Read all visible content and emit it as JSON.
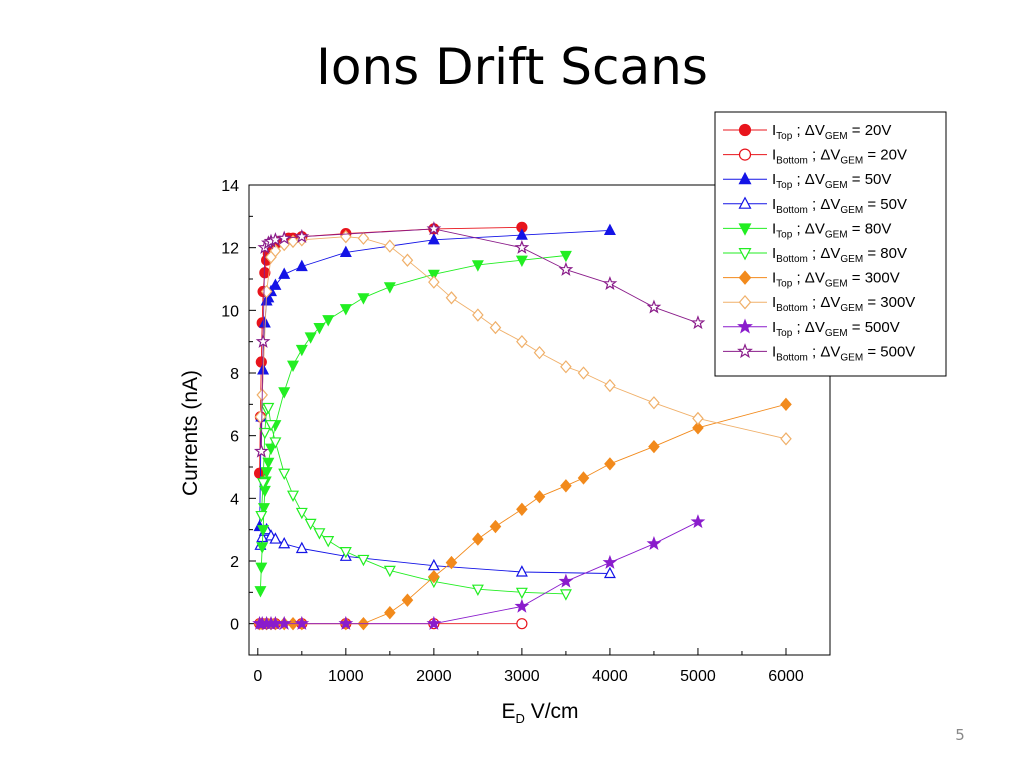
{
  "slide": {
    "title": "Ions Drift Scans",
    "number": "5"
  },
  "chart_data": {
    "type": "scatter",
    "xlabel": {
      "main": "E",
      "sub": "D",
      "rest": " V/cm"
    },
    "ylabel": "Currents (nA)",
    "xlim": [
      -100,
      6500
    ],
    "ylim": [
      -1,
      14
    ],
    "xticks": [
      0,
      1000,
      2000,
      3000,
      4000,
      5000,
      6000
    ],
    "yticks": [
      0,
      2,
      4,
      6,
      8,
      10,
      12,
      14
    ],
    "legend_position": "top-right",
    "series": [
      {
        "name": "I_Top ; ΔV_GEM = 20V",
        "legend": {
          "i": "I",
          "isub": "Top",
          "dv": " ; ΔV",
          "dvsub": "GEM",
          "val": " = 20V"
        },
        "color": "#e8141c",
        "marker": "circle",
        "filled": true,
        "points": [
          [
            20,
            4.8
          ],
          [
            30,
            6.6
          ],
          [
            40,
            8.35
          ],
          [
            50,
            9.6
          ],
          [
            60,
            10.6
          ],
          [
            80,
            11.2
          ],
          [
            100,
            11.6
          ],
          [
            120,
            11.8
          ],
          [
            150,
            12.0
          ],
          [
            200,
            12.1
          ],
          [
            250,
            12.2
          ],
          [
            300,
            12.2
          ],
          [
            350,
            12.3
          ],
          [
            400,
            12.3
          ],
          [
            500,
            12.35
          ],
          [
            1000,
            12.45
          ],
          [
            2000,
            12.6
          ],
          [
            3000,
            12.65
          ]
        ]
      },
      {
        "name": "I_Bottom ; ΔV_GEM = 20V",
        "legend": {
          "i": "I",
          "isub": "Bottom",
          "dv": " ; ΔV",
          "dvsub": "GEM",
          "val": " = 20V"
        },
        "color": "#e8141c",
        "marker": "circle",
        "filled": false,
        "points": [
          [
            20,
            0
          ],
          [
            50,
            0
          ],
          [
            100,
            0
          ],
          [
            200,
            0
          ],
          [
            500,
            0
          ],
          [
            1000,
            0
          ],
          [
            2000,
            0
          ],
          [
            3000,
            0
          ]
        ]
      },
      {
        "name": "I_Top ; ΔV_GEM = 50V",
        "legend": {
          "i": "I",
          "isub": "Top",
          "dv": " ; ΔV",
          "dvsub": "GEM",
          "val": " = 50V"
        },
        "color": "#1414e6",
        "marker": "triangle",
        "filled": true,
        "points": [
          [
            20,
            3.1
          ],
          [
            40,
            6.6
          ],
          [
            60,
            8.1
          ],
          [
            80,
            9.6
          ],
          [
            100,
            10.3
          ],
          [
            120,
            10.4
          ],
          [
            150,
            10.6
          ],
          [
            200,
            10.8
          ],
          [
            300,
            11.15
          ],
          [
            500,
            11.4
          ],
          [
            1000,
            11.85
          ],
          [
            2000,
            12.25
          ],
          [
            3000,
            12.4
          ],
          [
            4000,
            12.55
          ]
        ]
      },
      {
        "name": "I_Bottom ; ΔV_GEM = 50V",
        "legend": {
          "i": "I",
          "isub": "Bottom",
          "dv": " ; ΔV",
          "dvsub": "GEM",
          "val": " = 50V"
        },
        "color": "#1414e6",
        "marker": "triangle",
        "filled": false,
        "points": [
          [
            30,
            2.5
          ],
          [
            50,
            2.75
          ],
          [
            80,
            2.95
          ],
          [
            100,
            3.0
          ],
          [
            150,
            2.8
          ],
          [
            200,
            2.7
          ],
          [
            300,
            2.55
          ],
          [
            500,
            2.4
          ],
          [
            1000,
            2.15
          ],
          [
            2000,
            1.85
          ],
          [
            3000,
            1.65
          ],
          [
            4000,
            1.6
          ]
        ]
      },
      {
        "name": "I_Top ; ΔV_GEM = 80V",
        "legend": {
          "i": "I",
          "isub": "Top",
          "dv": " ; ΔV",
          "dvsub": "GEM",
          "val": " = 80V"
        },
        "color": "#22ee22",
        "marker": "triangle-down",
        "filled": true,
        "points": [
          [
            30,
            1.05
          ],
          [
            40,
            1.8
          ],
          [
            50,
            2.45
          ],
          [
            60,
            3.0
          ],
          [
            70,
            3.7
          ],
          [
            80,
            4.25
          ],
          [
            90,
            4.55
          ],
          [
            100,
            4.85
          ],
          [
            120,
            5.15
          ],
          [
            150,
            5.6
          ],
          [
            200,
            6.35
          ],
          [
            300,
            7.4
          ],
          [
            400,
            8.25
          ],
          [
            500,
            8.75
          ],
          [
            600,
            9.15
          ],
          [
            700,
            9.45
          ],
          [
            800,
            9.7
          ],
          [
            1000,
            10.05
          ],
          [
            1200,
            10.4
          ],
          [
            1500,
            10.75
          ],
          [
            2000,
            11.15
          ],
          [
            2500,
            11.45
          ],
          [
            3000,
            11.6
          ],
          [
            3500,
            11.75
          ]
        ]
      },
      {
        "name": "I_Bottom ; ΔV_GEM = 80V",
        "legend": {
          "i": "I",
          "isub": "Bottom",
          "dv": " ; ΔV",
          "dvsub": "GEM",
          "val": " = 80V"
        },
        "color": "#22ee22",
        "marker": "triangle-down",
        "filled": false,
        "points": [
          [
            40,
            3.45
          ],
          [
            60,
            4.5
          ],
          [
            80,
            6.1
          ],
          [
            100,
            6.85
          ],
          [
            120,
            6.9
          ],
          [
            150,
            6.35
          ],
          [
            200,
            5.8
          ],
          [
            300,
            4.8
          ],
          [
            400,
            4.1
          ],
          [
            500,
            3.55
          ],
          [
            600,
            3.2
          ],
          [
            700,
            2.9
          ],
          [
            800,
            2.65
          ],
          [
            1000,
            2.3
          ],
          [
            1200,
            2.05
          ],
          [
            1500,
            1.7
          ],
          [
            2000,
            1.35
          ],
          [
            2500,
            1.1
          ],
          [
            3000,
            1.0
          ],
          [
            3500,
            0.95
          ]
        ]
      },
      {
        "name": "I_Top ; ΔV_GEM = 300V",
        "legend": {
          "i": "I",
          "isub": "Top",
          "dv": " ; ΔV",
          "dvsub": "GEM",
          "val": " = 300V"
        },
        "color": "#f28a1c",
        "marker": "diamond",
        "filled": true,
        "points": [
          [
            20,
            0
          ],
          [
            50,
            0
          ],
          [
            100,
            0
          ],
          [
            150,
            0
          ],
          [
            200,
            0
          ],
          [
            300,
            0
          ],
          [
            400,
            0
          ],
          [
            500,
            0
          ],
          [
            1000,
            0
          ],
          [
            1200,
            0
          ],
          [
            1500,
            0.35
          ],
          [
            1700,
            0.75
          ],
          [
            2000,
            1.5
          ],
          [
            2200,
            1.95
          ],
          [
            2500,
            2.7
          ],
          [
            2700,
            3.1
          ],
          [
            3000,
            3.65
          ],
          [
            3200,
            4.05
          ],
          [
            3500,
            4.4
          ],
          [
            3700,
            4.65
          ],
          [
            4000,
            5.1
          ],
          [
            4500,
            5.65
          ],
          [
            5000,
            6.25
          ],
          [
            6000,
            7.0
          ]
        ]
      },
      {
        "name": "I_Bottom ; ΔV_GEM = 300V",
        "legend": {
          "i": "I",
          "isub": "Bottom",
          "dv": " ; ΔV",
          "dvsub": "GEM",
          "val": " = 300V"
        },
        "color": "#f0b06a",
        "marker": "diamond",
        "filled": false,
        "points": [
          [
            30,
            6.6
          ],
          [
            50,
            7.3
          ],
          [
            100,
            10.6
          ],
          [
            150,
            11.7
          ],
          [
            200,
            11.9
          ],
          [
            300,
            12.1
          ],
          [
            400,
            12.2
          ],
          [
            500,
            12.25
          ],
          [
            1000,
            12.35
          ],
          [
            1200,
            12.3
          ],
          [
            1500,
            12.05
          ],
          [
            1700,
            11.6
          ],
          [
            2000,
            10.9
          ],
          [
            2200,
            10.4
          ],
          [
            2500,
            9.85
          ],
          [
            2700,
            9.45
          ],
          [
            3000,
            9.0
          ],
          [
            3200,
            8.65
          ],
          [
            3500,
            8.2
          ],
          [
            3700,
            8.0
          ],
          [
            4000,
            7.6
          ],
          [
            4500,
            7.05
          ],
          [
            5000,
            6.55
          ],
          [
            6000,
            5.9
          ]
        ]
      },
      {
        "name": "I_Top ; ΔV_GEM = 500V",
        "legend": {
          "i": "I",
          "isub": "Top",
          "dv": " ; ΔV",
          "dvsub": "GEM",
          "val": " = 500V"
        },
        "color": "#8a1ccc",
        "marker": "star",
        "filled": true,
        "points": [
          [
            20,
            0
          ],
          [
            50,
            0
          ],
          [
            100,
            0
          ],
          [
            150,
            0
          ],
          [
            200,
            0
          ],
          [
            300,
            0
          ],
          [
            500,
            0
          ],
          [
            1000,
            0
          ],
          [
            2000,
            0
          ],
          [
            3000,
            0.55
          ],
          [
            3500,
            1.35
          ],
          [
            4000,
            1.95
          ],
          [
            4500,
            2.55
          ],
          [
            5000,
            3.25
          ]
        ]
      },
      {
        "name": "I_Bottom ; ΔV_GEM = 500V",
        "legend": {
          "i": "I",
          "isub": "Bottom",
          "dv": " ; ΔV",
          "dvsub": "GEM",
          "val": " = 500V"
        },
        "color": "#8a1c8a",
        "marker": "star",
        "filled": false,
        "points": [
          [
            40,
            5.5
          ],
          [
            60,
            9.0
          ],
          [
            80,
            12.0
          ],
          [
            120,
            12.15
          ],
          [
            150,
            12.2
          ],
          [
            200,
            12.25
          ],
          [
            300,
            12.3
          ],
          [
            500,
            12.35
          ],
          [
            2000,
            12.6
          ],
          [
            3000,
            12.0
          ],
          [
            3500,
            11.3
          ],
          [
            4000,
            10.85
          ],
          [
            4500,
            10.1
          ],
          [
            5000,
            9.6
          ]
        ]
      }
    ]
  }
}
